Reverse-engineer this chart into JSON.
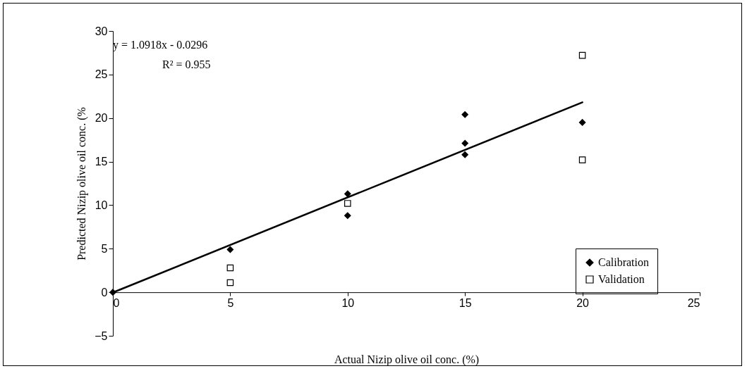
{
  "chart_data": {
    "type": "scatter",
    "xlabel": "Actual Nizip olive oil conc. (%)",
    "ylabel": "Predicted Nizip olive oil conc. (%",
    "xlim": [
      0,
      25
    ],
    "ylim": [
      -5,
      30
    ],
    "xticks": [
      0,
      5,
      10,
      15,
      20,
      25
    ],
    "yticks": [
      -5,
      0,
      5,
      10,
      15,
      20,
      25,
      30
    ],
    "grid": false,
    "legend": "bottom right",
    "annotations": [
      "y = 1.0918x - 0.0296",
      "R² = 0.955"
    ],
    "series": [
      {
        "name": "Calibration",
        "color": "#000000",
        "marker": "diamond",
        "x": [
          0,
          5,
          10,
          10,
          15,
          15,
          15,
          20
        ],
        "values": [
          0,
          4.9,
          11.3,
          8.8,
          20.4,
          17.1,
          15.8,
          19.5
        ]
      },
      {
        "name": "Validation",
        "color": "#000000",
        "marker": "square",
        "x": [
          5,
          5,
          10,
          20,
          20
        ],
        "values": [
          2.8,
          1.1,
          10.2,
          27.2,
          15.2
        ]
      },
      {
        "type": "line",
        "color": "#000000",
        "x": [
          0,
          20
        ],
        "values": [
          -0.0296,
          21.806
        ]
      }
    ]
  }
}
